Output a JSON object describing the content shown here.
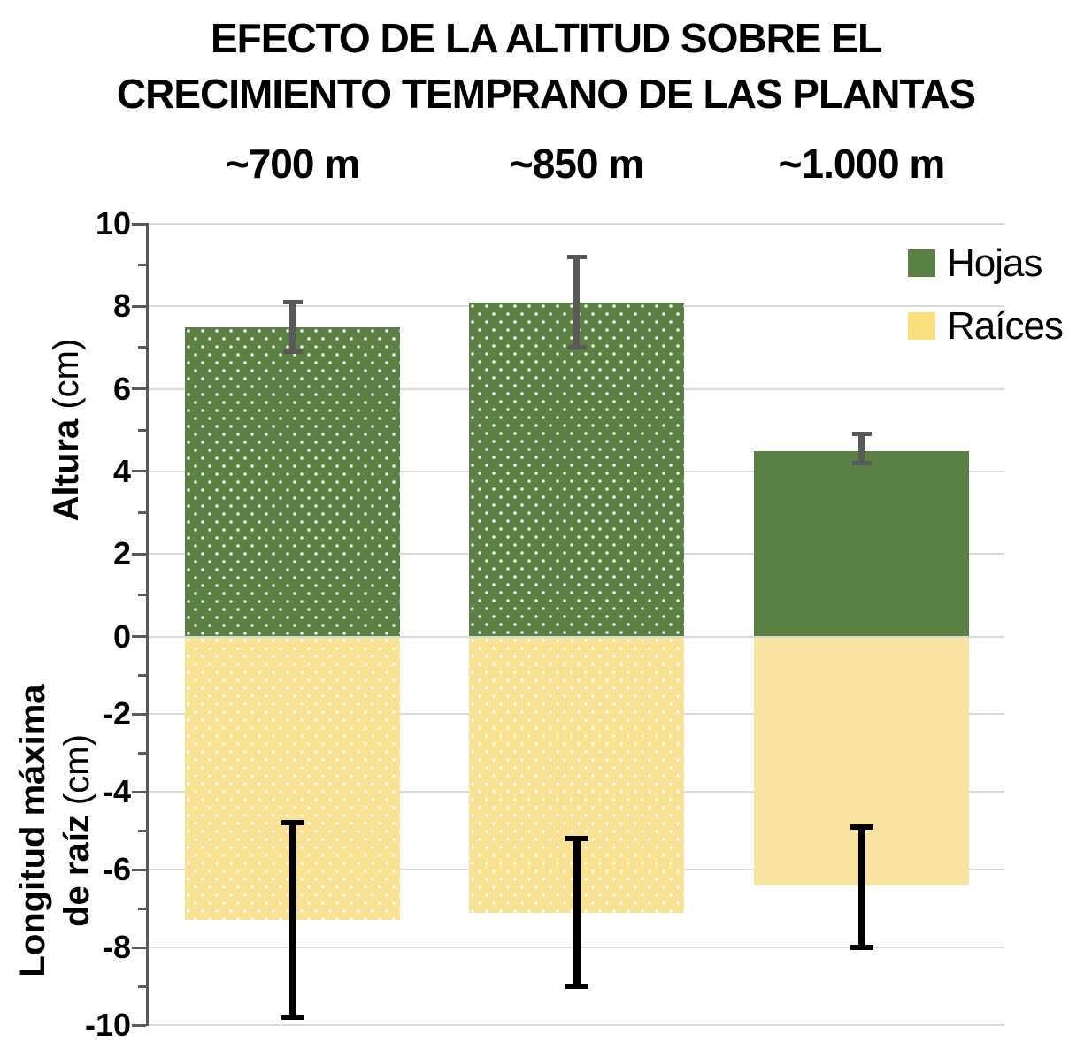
{
  "title": {
    "line1": "EFECTO DE LA ALTITUD SOBRE EL",
    "line2": "CRECIMIENTO TEMPRANO DE LAS PLANTAS"
  },
  "axis_titles": {
    "top_main": "Altura",
    "top_unit": " (cm)",
    "bottom_line1": "Longitud máxima",
    "bottom_line2_main": "de raíz",
    "bottom_line2_unit": " (cm)"
  },
  "chart_data": {
    "type": "bar",
    "subtype": "diverging-vertical-with-error-bars",
    "title": "EFECTO DE LA ALTITUD SOBRE EL CRECIMIENTO TEMPRANO DE LAS PLANTAS",
    "categories": [
      "~700 m",
      "~850 m",
      "~1.000 m"
    ],
    "series": [
      {
        "name": "Hojas",
        "ylabel": "Altura (cm)",
        "color": "#5B8043",
        "legend_color": "#5B8043",
        "pattern_per_bar": [
          "dots",
          "dots",
          "solid"
        ],
        "values": [
          7.5,
          8.1,
          4.5
        ],
        "error_low": [
          6.9,
          7.0,
          4.2
        ],
        "error_high": [
          8.1,
          9.2,
          4.9
        ],
        "error_color": "#595959"
      },
      {
        "name": "Raíces",
        "ylabel": "Longitud máxima de raíz (cm)",
        "color": "#FAE293",
        "legend_color": "#FBDF7D",
        "pattern_per_bar": [
          "dots",
          "dots",
          "solid"
        ],
        "values": [
          -7.3,
          -7.1,
          -6.4
        ],
        "error_low": [
          -9.8,
          -9.0,
          -8.0
        ],
        "error_high": [
          -4.8,
          -5.2,
          -4.9
        ],
        "error_color": "#000000"
      }
    ],
    "y_axis": {
      "min": -10,
      "max": 10,
      "major_step": 2,
      "minor_step": 1,
      "major_tick_labels": [
        "10",
        "8",
        "6",
        "4",
        "2",
        "0",
        "-2",
        "-4",
        "-6",
        "-8",
        "-10"
      ]
    },
    "grid": true,
    "gridline_color": "#D9D9D9",
    "axis_color": "#595959",
    "legend_position": "top-right",
    "legend_entries": [
      "Hojas",
      "Raíces"
    ]
  }
}
